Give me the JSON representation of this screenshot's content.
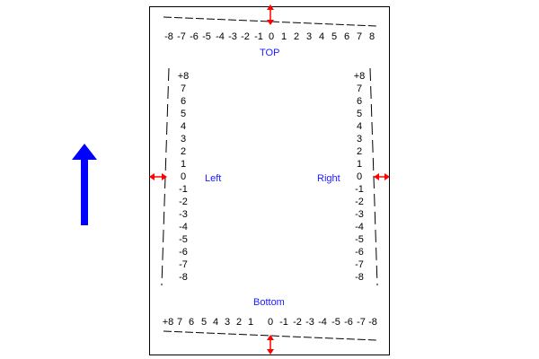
{
  "labels": {
    "top": "TOP",
    "bottom": "Bottom",
    "left": "Left",
    "right": "Right"
  },
  "scales": {
    "top": [
      "-8",
      "-7",
      "-6",
      "-5",
      "-4",
      "-3",
      "-2",
      "-1",
      "0",
      "1",
      "2",
      "3",
      "4",
      "5",
      "6",
      "7",
      "8"
    ],
    "bottom": [
      "+8",
      "7",
      "6",
      "5",
      "4",
      "3",
      "2",
      "1",
      "0",
      "-1",
      "-2",
      "-3",
      "-4",
      "-5",
      "-6",
      "-7",
      "-8"
    ],
    "left": [
      "+8",
      "7",
      "6",
      "5",
      "4",
      "3",
      "2",
      "1",
      "0",
      "-1",
      "-2",
      "-3",
      "-4",
      "-5",
      "-6",
      "-7",
      "-8"
    ],
    "right": [
      "+8",
      "7",
      "6",
      "5",
      "4",
      "3",
      "2",
      "1",
      "0",
      "-1",
      "-2",
      "-3",
      "-4",
      "-5",
      "-6",
      "-7",
      "-8"
    ]
  },
  "colors": {
    "label": "#1a1aff",
    "adjust_arrow": "#ff0000",
    "feed_arrow": "#0000ff"
  },
  "icons": {
    "feed_arrow": "up-arrow-icon",
    "adjust_arrows": "double-headed-arrow-icon"
  }
}
